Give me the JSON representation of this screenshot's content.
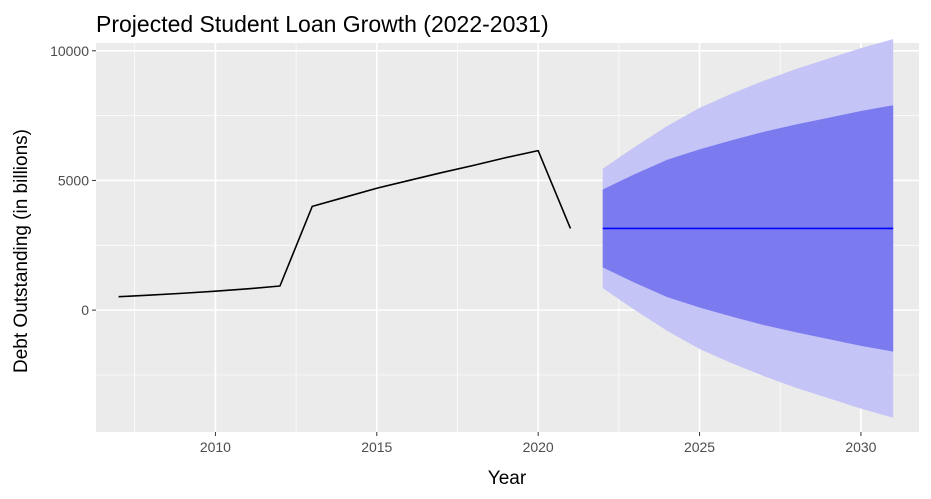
{
  "chart_data": {
    "type": "line",
    "title": "Projected Student Loan Growth (2022-2031)",
    "xlabel": "Year",
    "ylabel": "Debt Outstanding (in billions)",
    "xlim": [
      2006.3,
      2031.8
    ],
    "ylim": [
      -4700,
      10300
    ],
    "x_ticks": [
      2010,
      2015,
      2020,
      2025,
      2030
    ],
    "y_ticks": [
      0,
      5000,
      10000
    ],
    "x_tick_labels": [
      "2010",
      "2015",
      "2020",
      "2025",
      "2030"
    ],
    "y_tick_labels": [
      "0",
      "5000",
      "10000"
    ],
    "grid": true,
    "legend": "none",
    "colors": {
      "panel": "#ebebeb",
      "grid": "#ffffff",
      "history_line": "#000000",
      "forecast_line": "#0000ff",
      "band_95": "#c4c4f7",
      "band_80": "#7b7bef",
      "tick_mark": "#333333"
    },
    "series": [
      {
        "kind": "line",
        "x": [
          2007,
          2008,
          2009,
          2010,
          2011,
          2012,
          2013,
          2014,
          2015,
          2016,
          2017,
          2018,
          2019,
          2020,
          2021
        ],
        "y": [
          516,
          580,
          650,
          730,
          820,
          930,
          4000,
          4350,
          4700,
          5000,
          5300,
          5580,
          5880,
          6150,
          3150
        ]
      },
      {
        "kind": "forecast",
        "x": [
          2022,
          2023,
          2024,
          2025,
          2026,
          2027,
          2028,
          2029,
          2030,
          2031
        ],
        "mean": [
          3150,
          3150,
          3150,
          3150,
          3150,
          3150,
          3150,
          3150,
          3150,
          3150
        ],
        "lo80": [
          1650,
          1050,
          500,
          100,
          -250,
          -580,
          -860,
          -1120,
          -1380,
          -1600
        ],
        "hi80": [
          4650,
          5250,
          5800,
          6200,
          6550,
          6880,
          7160,
          7420,
          7680,
          7900
        ],
        "lo95": [
          850,
          0,
          -800,
          -1500,
          -2050,
          -2550,
          -3000,
          -3400,
          -3800,
          -4150
        ],
        "hi95": [
          5450,
          6300,
          7100,
          7800,
          8350,
          8850,
          9300,
          9700,
          10100,
          10450
        ]
      }
    ]
  }
}
